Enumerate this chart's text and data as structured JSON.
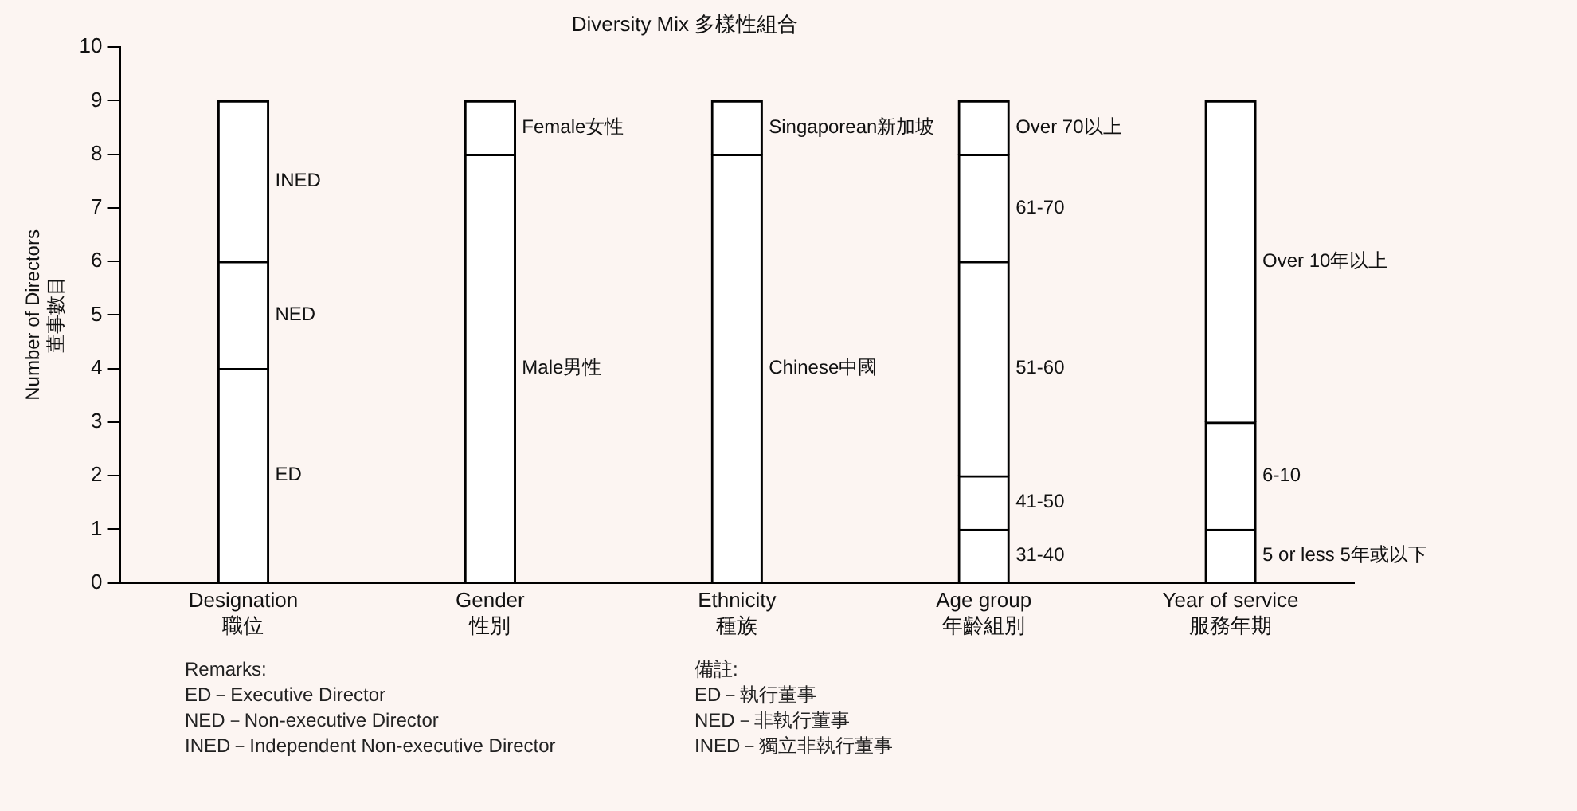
{
  "chart_data": {
    "type": "bar",
    "title": "Diversity Mix 多樣性組合",
    "ylabel": "Number of Directors\n董事數目",
    "categories": [
      "Designation\n職位",
      "Gender\n性別",
      "Ethnicity\n種族",
      "Age group\n年齡組別",
      "Year of service\n服務年期"
    ],
    "stacked": true,
    "ylim": [
      0,
      10
    ],
    "yticks": [
      0,
      1,
      2,
      3,
      4,
      5,
      6,
      7,
      8,
      9,
      10
    ],
    "grid": false,
    "legend": false,
    "series": [
      {
        "name": "ED",
        "color": "#ffffff",
        "values": [
          4,
          null,
          null,
          null,
          null
        ]
      },
      {
        "name": "NED",
        "color": "#ffffff",
        "values": [
          2,
          null,
          null,
          null,
          null
        ]
      },
      {
        "name": "INED",
        "color": "#ffffff",
        "values": [
          3,
          null,
          null,
          null,
          null
        ]
      },
      {
        "name": "Male男性",
        "color": "#ffffff",
        "values": [
          null,
          8,
          null,
          null,
          null
        ]
      },
      {
        "name": "Female女性",
        "color": "#ffffff",
        "values": [
          null,
          1,
          null,
          null,
          null
        ]
      },
      {
        "name": "Chinese中國",
        "color": "#ffffff",
        "values": [
          null,
          null,
          8,
          null,
          null
        ]
      },
      {
        "name": "Singaporean新加坡",
        "color": "#ffffff",
        "values": [
          null,
          null,
          1,
          null,
          null
        ]
      },
      {
        "name": "31-40",
        "color": "#ffffff",
        "values": [
          null,
          null,
          null,
          1,
          null
        ]
      },
      {
        "name": "41-50",
        "color": "#ffffff",
        "values": [
          null,
          null,
          null,
          1,
          null
        ]
      },
      {
        "name": "51-60",
        "color": "#ffffff",
        "values": [
          null,
          null,
          null,
          4,
          null
        ]
      },
      {
        "name": "61-70",
        "color": "#ffffff",
        "values": [
          null,
          null,
          null,
          2,
          null
        ]
      },
      {
        "name": "Over 70以上",
        "color": "#ffffff",
        "values": [
          null,
          null,
          null,
          1,
          null
        ]
      },
      {
        "name": "5 or less 5年或以下",
        "color": "#ffffff",
        "values": [
          null,
          null,
          null,
          null,
          1
        ]
      },
      {
        "name": "6-10",
        "color": "#ffffff",
        "values": [
          null,
          null,
          null,
          null,
          2
        ]
      },
      {
        "name": "Over 10年以上",
        "color": "#ffffff",
        "values": [
          null,
          null,
          null,
          null,
          6
        ]
      }
    ],
    "annotations": [
      "Remarks:",
      "ED－Executive Director",
      "NED－Non-executive Director",
      "INED－Independent Non-executive Director",
      "備註:",
      "ED－執行董事",
      "NED－非執行董事",
      "INED－獨立非執行董事"
    ]
  }
}
